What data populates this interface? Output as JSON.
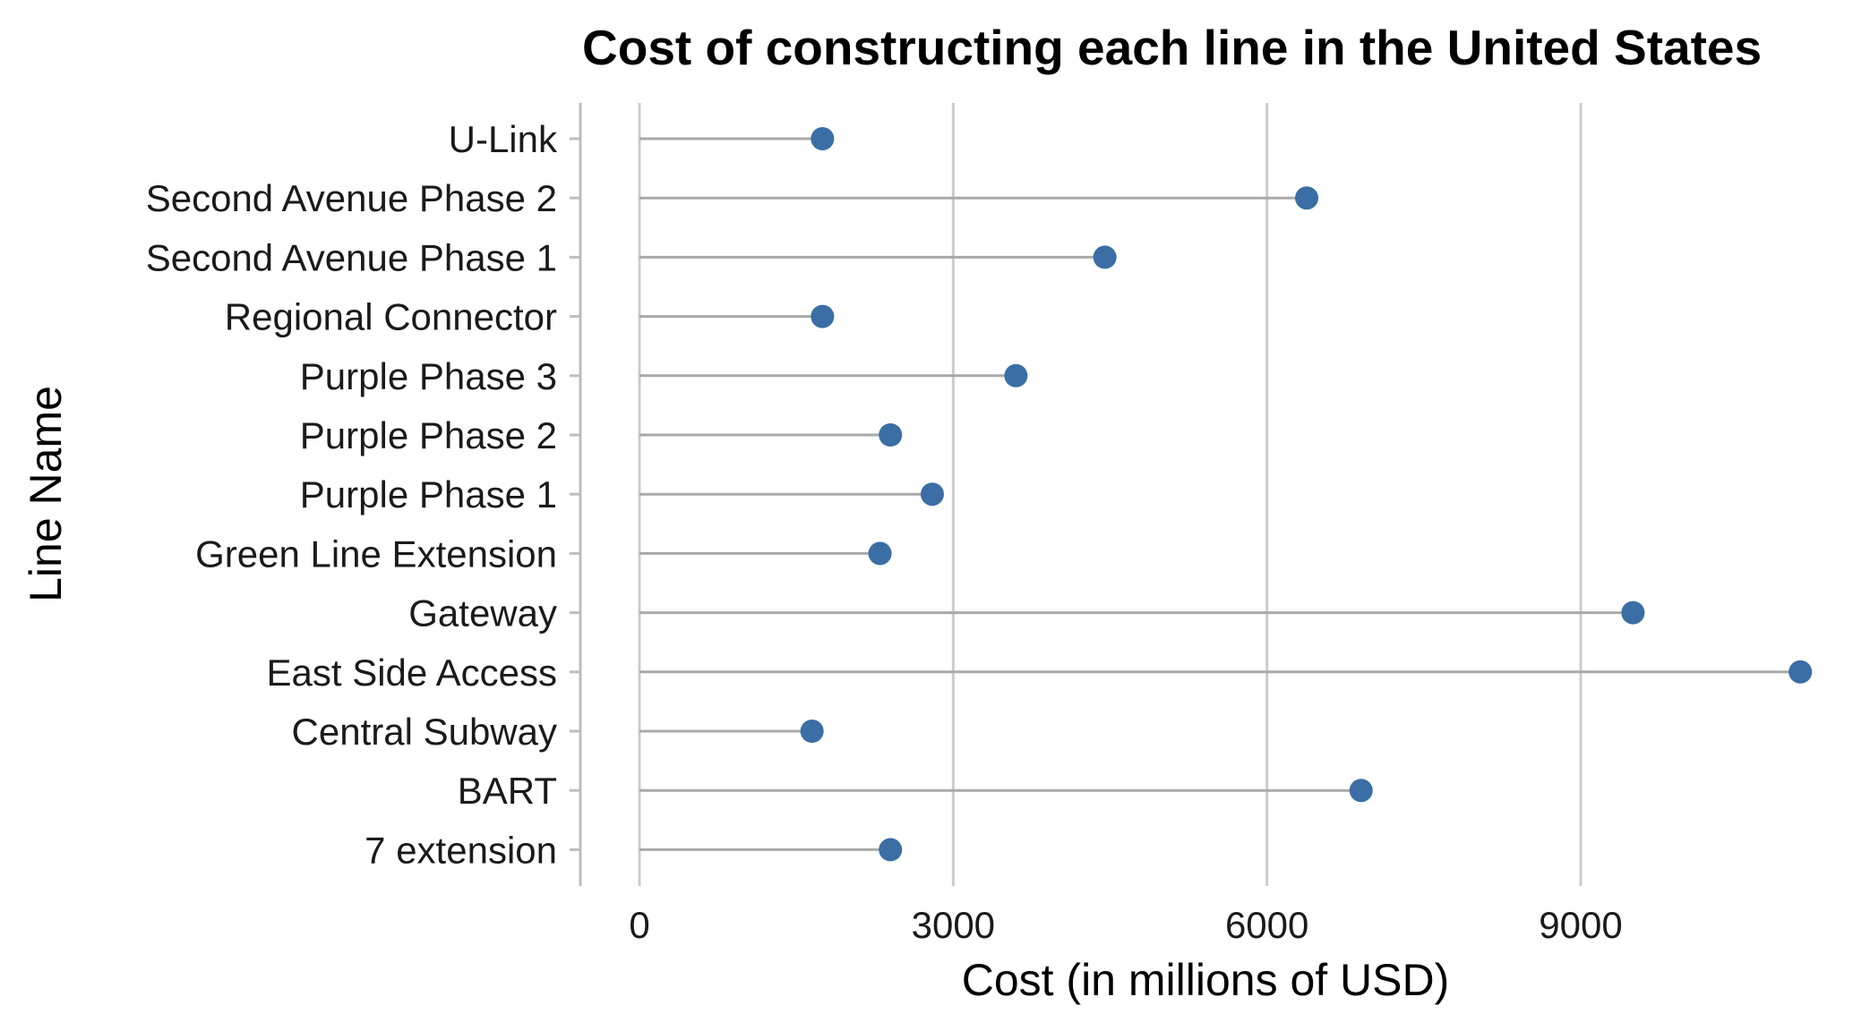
{
  "colors": {
    "point": "#3a6ea5",
    "stem": "#a9a9a9",
    "grid": "#cccccc",
    "axis": "#bdbdbd"
  },
  "chart_data": {
    "type": "lollipop",
    "title": "Cost of constructing each line in the United States",
    "xlabel": "Cost (in millions of USD)",
    "ylabel": "Line Name",
    "xlim": [
      -550,
      11400
    ],
    "xticks": [
      0,
      3000,
      6000,
      9000
    ],
    "xtick_labels": [
      "0",
      "3000",
      "6000",
      "9000"
    ],
    "grid": "vertical major",
    "categories": [
      "U-Link",
      "Second Avenue Phase 2",
      "Second Avenue Phase 1",
      "Regional Connector",
      "Purple Phase 3",
      "Purple Phase 2",
      "Purple Phase 1",
      "Green Line Extension",
      "Gateway",
      "East Side Access",
      "Central Subway",
      "BART",
      "7 extension"
    ],
    "values": [
      1750,
      6380,
      4450,
      1750,
      3600,
      2400,
      2800,
      2300,
      9500,
      11100,
      1650,
      6900,
      2400
    ]
  }
}
